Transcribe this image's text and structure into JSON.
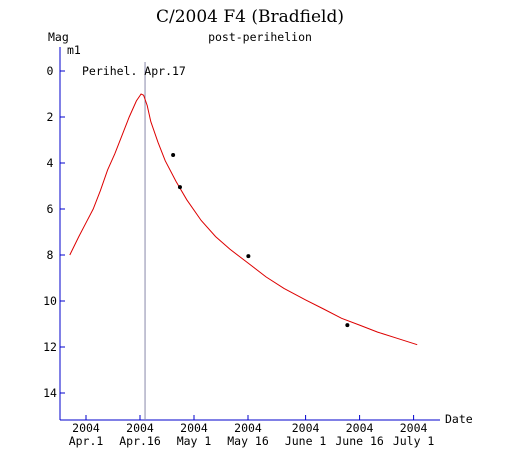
{
  "chart_data": {
    "type": "line",
    "title": "C/2004 F4 (Bradfield)",
    "subtitle": "post-perihelion",
    "ylabel_top": "Mag",
    "ylabel": "m1",
    "xlabel": "Date",
    "ylim": [
      15,
      -1.2
    ],
    "y_ticks": [
      0,
      2,
      4,
      6,
      8,
      10,
      12,
      14
    ],
    "xlim_days": [
      -4.5,
      93
    ],
    "x_ticks": [
      {
        "day": 0,
        "year": "2004",
        "label": "Apr.1"
      },
      {
        "day": 15,
        "year": "2004",
        "label": "Apr.16"
      },
      {
        "day": 30,
        "year": "2004",
        "label": "May 1"
      },
      {
        "day": 45,
        "year": "2004",
        "label": "May 16"
      },
      {
        "day": 61,
        "year": "2004",
        "label": "June 1"
      },
      {
        "day": 76,
        "year": "2004",
        "label": "June 16"
      },
      {
        "day": 91,
        "year": "2004",
        "label": "July 1"
      }
    ],
    "perihelion": {
      "day": 16.4,
      "label": "Perihel. Apr.17"
    },
    "series": [
      {
        "kind": "curve",
        "color": "#dd0000",
        "points": [
          [
            -4.5,
            8.0
          ],
          [
            -2,
            7.2
          ],
          [
            0,
            6.6
          ],
          [
            2,
            6.0
          ],
          [
            4,
            5.2
          ],
          [
            6,
            4.3
          ],
          [
            8,
            3.6
          ],
          [
            10,
            2.8
          ],
          [
            12,
            2.0
          ],
          [
            14,
            1.3
          ],
          [
            15.3,
            1.0
          ],
          [
            16,
            1.05
          ],
          [
            17,
            1.5
          ],
          [
            18,
            2.2
          ],
          [
            20,
            3.1
          ],
          [
            22,
            3.9
          ],
          [
            25,
            4.8
          ],
          [
            28,
            5.6
          ],
          [
            32,
            6.5
          ],
          [
            36,
            7.2
          ],
          [
            40,
            7.75
          ],
          [
            45,
            8.35
          ],
          [
            50,
            8.95
          ],
          [
            55,
            9.45
          ],
          [
            61,
            9.95
          ],
          [
            66,
            10.35
          ],
          [
            71,
            10.75
          ],
          [
            76,
            11.05
          ],
          [
            81,
            11.35
          ],
          [
            86,
            11.6
          ],
          [
            92,
            11.9
          ]
        ]
      },
      {
        "kind": "points",
        "color": "#000000",
        "points": [
          [
            24.2,
            3.65
          ],
          [
            26.1,
            5.05
          ],
          [
            45.1,
            8.05
          ],
          [
            72.6,
            11.05
          ]
        ]
      }
    ]
  }
}
